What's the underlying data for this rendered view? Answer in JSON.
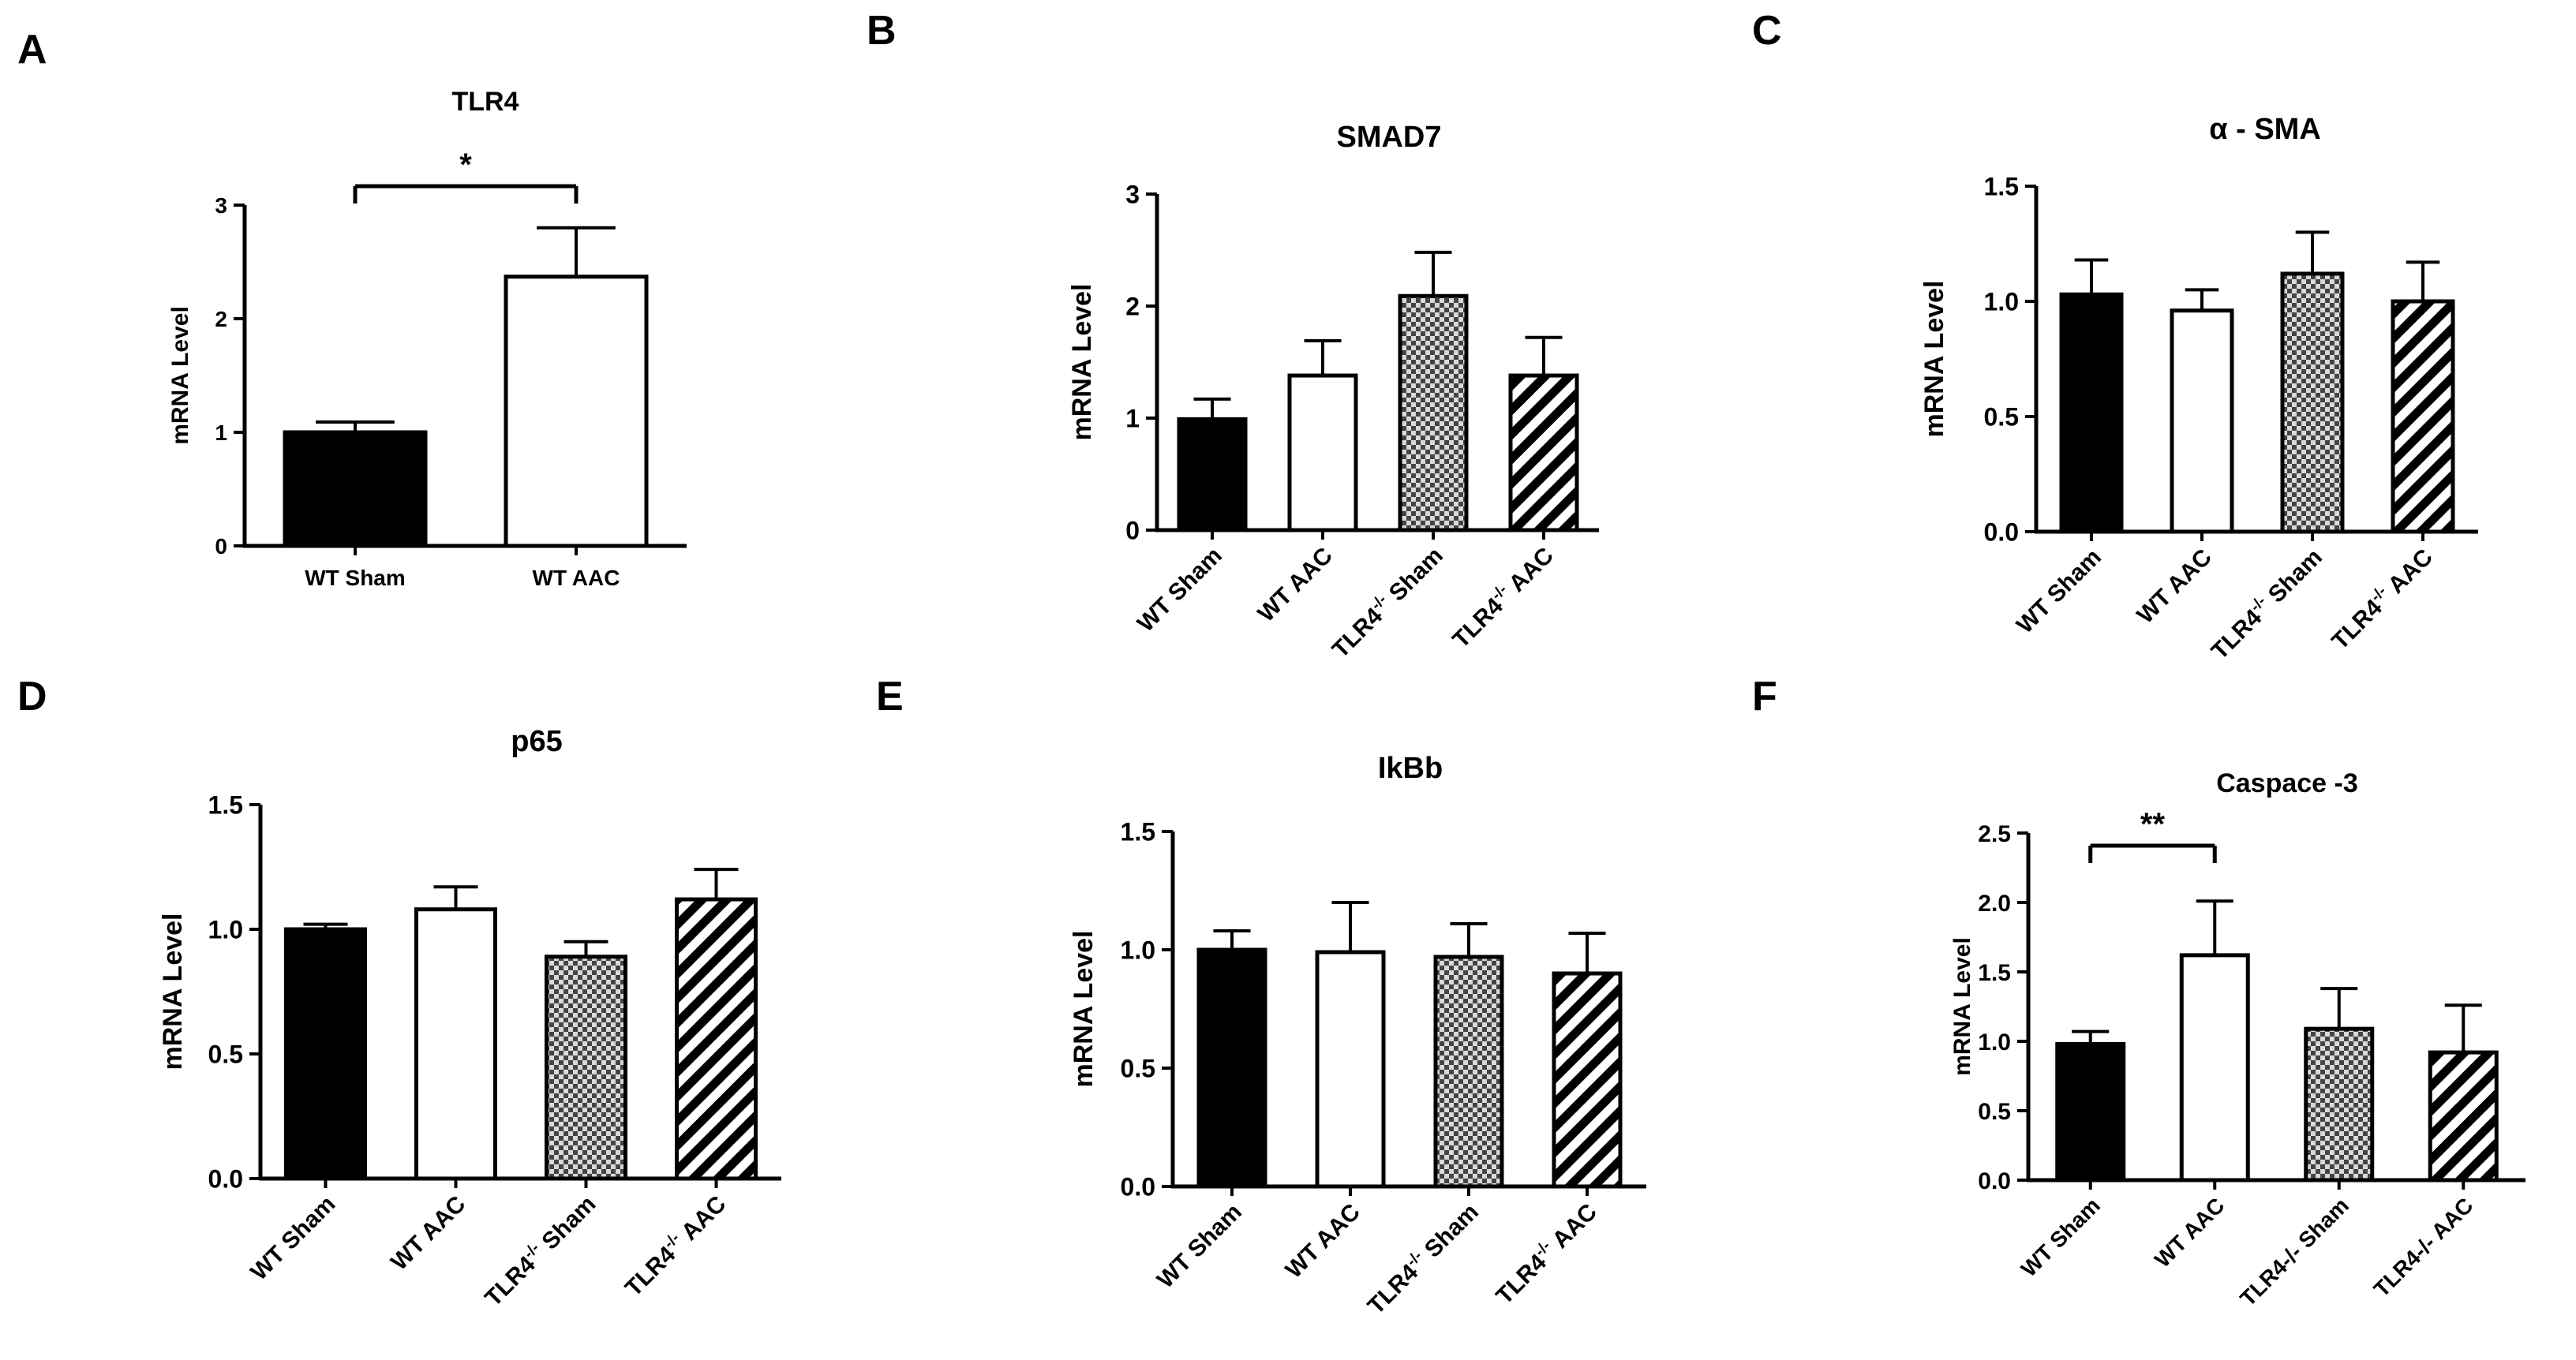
{
  "figure": {
    "panel_letters": [
      "A",
      "B",
      "C",
      "D",
      "E",
      "F"
    ]
  },
  "colors": {
    "ink": "#000000",
    "background": "#ffffff",
    "checker_dark": "#444444",
    "checker_light": "#d9d9d9"
  },
  "chart_data": [
    {
      "panel": "A",
      "type": "bar",
      "title": "TLR4",
      "ylabel": "mRNA Level",
      "xlabel": "",
      "ylim": [
        0,
        3
      ],
      "yticks": [
        "0",
        "1",
        "2",
        "3"
      ],
      "categories": [
        {
          "label": "WT Sham",
          "sup": "",
          "suffix": ""
        },
        {
          "label": "WT AAC",
          "sup": "",
          "suffix": ""
        }
      ],
      "values": [
        1.0,
        2.37
      ],
      "errors": [
        0.09,
        0.43
      ],
      "fills": [
        "solid",
        "white"
      ],
      "rotate_labels": false,
      "significance": {
        "from": 0,
        "to": 1,
        "label": "*"
      }
    },
    {
      "panel": "B",
      "type": "bar",
      "title": "SMAD7",
      "ylabel": "mRNA Level",
      "xlabel": "",
      "ylim": [
        0,
        3
      ],
      "yticks": [
        "0",
        "1",
        "2",
        "3"
      ],
      "categories": [
        {
          "label": "WT Sham",
          "sup": "",
          "suffix": ""
        },
        {
          "label": "WT AAC",
          "sup": "",
          "suffix": ""
        },
        {
          "label": "TLR4",
          "sup": "-/-",
          "suffix": " Sham"
        },
        {
          "label": "TLR4",
          "sup": "-/-",
          "suffix": "  AAC"
        }
      ],
      "values": [
        0.99,
        1.38,
        2.09,
        1.38
      ],
      "errors": [
        0.18,
        0.31,
        0.39,
        0.34
      ],
      "fills": [
        "solid",
        "white",
        "checker",
        "hatch"
      ],
      "rotate_labels": true,
      "significance": null
    },
    {
      "panel": "C",
      "type": "bar",
      "title": "α - SMA",
      "ylabel": "mRNA Level",
      "xlabel": "",
      "ylim": [
        0,
        1.5
      ],
      "yticks": [
        "0.0",
        "0.5",
        "1.0",
        "1.5"
      ],
      "categories": [
        {
          "label": "WT Sham",
          "sup": "",
          "suffix": ""
        },
        {
          "label": "WT AAC",
          "sup": "",
          "suffix": ""
        },
        {
          "label": "TLR4",
          "sup": "-/-",
          "suffix": " Sham"
        },
        {
          "label": "TLR4",
          "sup": "-/-",
          "suffix": "  AAC"
        }
      ],
      "values": [
        1.03,
        0.96,
        1.12,
        1.0
      ],
      "errors": [
        0.15,
        0.09,
        0.18,
        0.17
      ],
      "fills": [
        "solid",
        "white",
        "checker",
        "hatch"
      ],
      "rotate_labels": true,
      "significance": null
    },
    {
      "panel": "D",
      "type": "bar",
      "title": "p65",
      "ylabel": "mRNA Level",
      "xlabel": "",
      "ylim": [
        0,
        1.5
      ],
      "yticks": [
        "0.0",
        "0.5",
        "1.0",
        "1.5"
      ],
      "categories": [
        {
          "label": "WT Sham",
          "sup": "",
          "suffix": ""
        },
        {
          "label": "WT AAC",
          "sup": "",
          "suffix": ""
        },
        {
          "label": "TLR4",
          "sup": "-/-",
          "suffix": " Sham"
        },
        {
          "label": "TLR4",
          "sup": "-/-",
          "suffix": " AAC"
        }
      ],
      "values": [
        1.0,
        1.08,
        0.89,
        1.12
      ],
      "errors": [
        0.02,
        0.09,
        0.06,
        0.12
      ],
      "fills": [
        "solid",
        "white",
        "checker",
        "hatch"
      ],
      "rotate_labels": true,
      "significance": null
    },
    {
      "panel": "E",
      "type": "bar",
      "title": "IkBb",
      "ylabel": "mRNA Level",
      "xlabel": "",
      "ylim": [
        0,
        1.5
      ],
      "yticks": [
        "0.0",
        "0.5",
        "1.0",
        "1.5"
      ],
      "categories": [
        {
          "label": "WT Sham",
          "sup": "",
          "suffix": ""
        },
        {
          "label": "WT AAC",
          "sup": "",
          "suffix": ""
        },
        {
          "label": "TLR4",
          "sup": "-/-",
          "suffix": "  Sham"
        },
        {
          "label": "TLR4",
          "sup": "-/-",
          "suffix": "  AAC"
        }
      ],
      "values": [
        1.0,
        0.99,
        0.97,
        0.9
      ],
      "errors": [
        0.08,
        0.21,
        0.14,
        0.17
      ],
      "fills": [
        "solid",
        "white",
        "checker",
        "hatch"
      ],
      "rotate_labels": true,
      "significance": null
    },
    {
      "panel": "F",
      "type": "bar",
      "title": "Caspace -3",
      "ylabel": "mRNA Level",
      "xlabel": "",
      "ylim": [
        0,
        2.5
      ],
      "yticks": [
        "0.0",
        "0.5",
        "1.0",
        "1.5",
        "2.0",
        "2.5"
      ],
      "categories": [
        {
          "label": "WT Sham",
          "sup": "",
          "suffix": ""
        },
        {
          "label": "WT AAC",
          "sup": "",
          "suffix": ""
        },
        {
          "label": "TLR4-/- Sham",
          "sup": "",
          "suffix": ""
        },
        {
          "label": "TLR4-/- AAC",
          "sup": "",
          "suffix": ""
        }
      ],
      "values": [
        0.98,
        1.62,
        1.09,
        0.92
      ],
      "errors": [
        0.09,
        0.39,
        0.29,
        0.34
      ],
      "fills": [
        "solid",
        "white",
        "checker",
        "hatch"
      ],
      "rotate_labels": true,
      "significance": {
        "from": 0,
        "to": 1,
        "label": "**"
      }
    }
  ]
}
